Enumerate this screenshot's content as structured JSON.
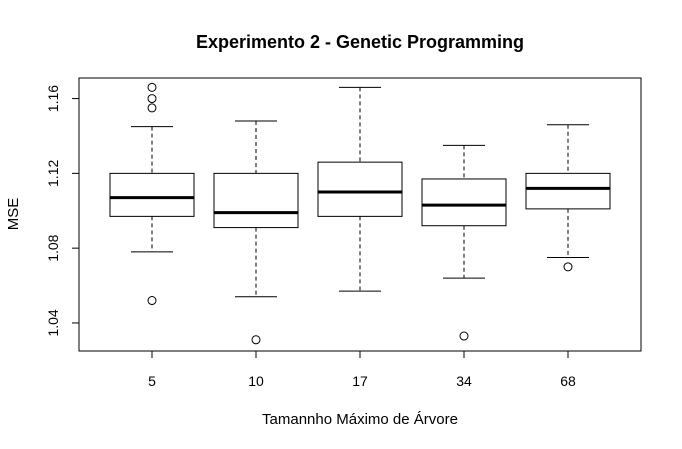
{
  "chart_data": {
    "type": "boxplot",
    "title": "Experimento 2 - Genetic Programming",
    "xlabel": "Tamannho Máximo de Árvore",
    "ylabel": "MSE",
    "categories": [
      "5",
      "10",
      "17",
      "34",
      "68"
    ],
    "ylim": [
      1.025,
      1.171
    ],
    "yticks": [
      1.04,
      1.08,
      1.12,
      1.16
    ],
    "ytick_labels": [
      "1.04",
      "1.08",
      "1.12",
      "1.16"
    ],
    "grid": false,
    "boxes": [
      {
        "category": "5",
        "whisker_low": 1.078,
        "q1": 1.097,
        "median": 1.107,
        "q3": 1.12,
        "whisker_high": 1.145,
        "outliers": [
          1.052,
          1.155,
          1.16,
          1.166
        ]
      },
      {
        "category": "10",
        "whisker_low": 1.054,
        "q1": 1.091,
        "median": 1.099,
        "q3": 1.12,
        "whisker_high": 1.148,
        "outliers": [
          1.031
        ]
      },
      {
        "category": "17",
        "whisker_low": 1.057,
        "q1": 1.097,
        "median": 1.11,
        "q3": 1.126,
        "whisker_high": 1.166,
        "outliers": []
      },
      {
        "category": "34",
        "whisker_low": 1.064,
        "q1": 1.092,
        "median": 1.103,
        "q3": 1.117,
        "whisker_high": 1.135,
        "outliers": [
          1.033
        ]
      },
      {
        "category": "68",
        "whisker_low": 1.075,
        "q1": 1.101,
        "median": 1.112,
        "q3": 1.12,
        "whisker_high": 1.146,
        "outliers": [
          1.07
        ]
      }
    ]
  }
}
